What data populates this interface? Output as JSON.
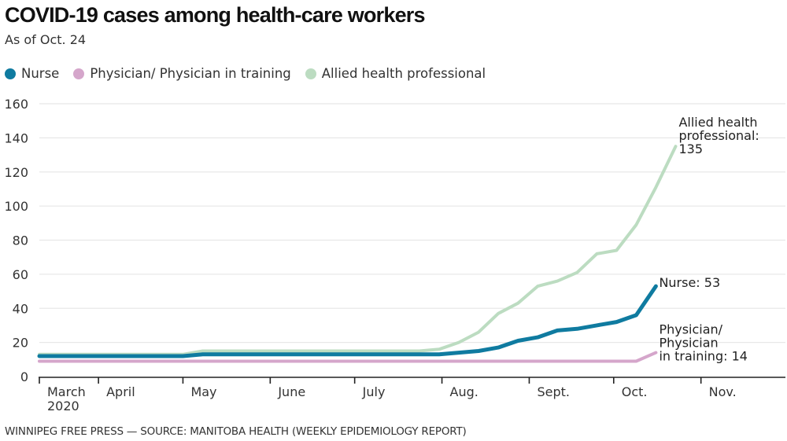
{
  "title": "COVID-19 cases among health-care workers",
  "subtitle": "As of Oct. 24",
  "footer": "WINNIPEG FREE PRESS — SOURCE: MANITOBA HEALTH (WEEKLY EPIDEMIOLOGY REPORT)",
  "colors": {
    "nurse": "#0f7ba0",
    "physician": "#d5a6cb",
    "allied": "#bcdcc1",
    "grid": "#e8e8e8",
    "axis": "#222222"
  },
  "chart_data": {
    "type": "line",
    "title": "COVID-19 cases among health-care workers",
    "subtitle": "As of Oct. 24",
    "xlabel": "",
    "ylabel": "",
    "ylim": [
      0,
      160
    ],
    "yticks": [
      "0",
      "20",
      "40",
      "60",
      "80",
      "100",
      "120",
      "140",
      "160"
    ],
    "xlim": [
      "2020-03-11",
      "2020-12-01"
    ],
    "xticks": [
      {
        "date": "2020-03-11",
        "label": "March",
        "label2": "2020"
      },
      {
        "date": "2020-04-01",
        "label": "April"
      },
      {
        "date": "2020-05-01",
        "label": "May"
      },
      {
        "date": "2020-06-01",
        "label": "June"
      },
      {
        "date": "2020-07-01",
        "label": "July"
      },
      {
        "date": "2020-08-01",
        "label": "Aug."
      },
      {
        "date": "2020-09-01",
        "label": "Sept."
      },
      {
        "date": "2020-10-01",
        "label": "Oct."
      },
      {
        "date": "2020-11-01",
        "label": "Nov."
      }
    ],
    "grid": true,
    "legend": "top-left",
    "legend_entries": [
      "Nurse",
      "Physician/ Physician in training",
      "Allied health professional"
    ],
    "series": [
      {
        "name": "Nurse",
        "key": "nurse",
        "points": [
          [
            "2020-03-11",
            12
          ],
          [
            "2020-05-01",
            12
          ],
          [
            "2020-05-08",
            13
          ],
          [
            "2020-07-31",
            13
          ],
          [
            "2020-08-07",
            14
          ],
          [
            "2020-08-14",
            15
          ],
          [
            "2020-08-21",
            17
          ],
          [
            "2020-08-28",
            21
          ],
          [
            "2020-09-04",
            23
          ],
          [
            "2020-09-11",
            27
          ],
          [
            "2020-09-18",
            28
          ],
          [
            "2020-09-25",
            30
          ],
          [
            "2020-10-02",
            32
          ],
          [
            "2020-10-09",
            36
          ],
          [
            "2020-10-16",
            53
          ]
        ],
        "end_label": [
          "Nurse: 53"
        ]
      },
      {
        "name": "Physician/ Physician in training",
        "key": "physician",
        "points": [
          [
            "2020-03-11",
            9
          ],
          [
            "2020-10-09",
            9
          ],
          [
            "2020-10-16",
            14
          ]
        ],
        "end_label": [
          "Physician/",
          "Physician",
          "in training: 14"
        ]
      },
      {
        "name": "Allied health professional",
        "key": "allied",
        "points": [
          [
            "2020-03-11",
            13
          ],
          [
            "2020-05-01",
            13
          ],
          [
            "2020-05-08",
            15
          ],
          [
            "2020-07-24",
            15
          ],
          [
            "2020-07-31",
            16
          ],
          [
            "2020-08-07",
            20
          ],
          [
            "2020-08-14",
            26
          ],
          [
            "2020-08-21",
            37
          ],
          [
            "2020-08-28",
            43
          ],
          [
            "2020-09-04",
            53
          ],
          [
            "2020-09-11",
            56
          ],
          [
            "2020-09-18",
            61
          ],
          [
            "2020-09-25",
            72
          ],
          [
            "2020-10-02",
            74
          ],
          [
            "2020-10-09",
            89
          ],
          [
            "2020-10-16",
            111
          ],
          [
            "2020-10-23",
            135
          ]
        ],
        "end_label": [
          "Allied health",
          "professional:",
          "135"
        ]
      }
    ]
  }
}
